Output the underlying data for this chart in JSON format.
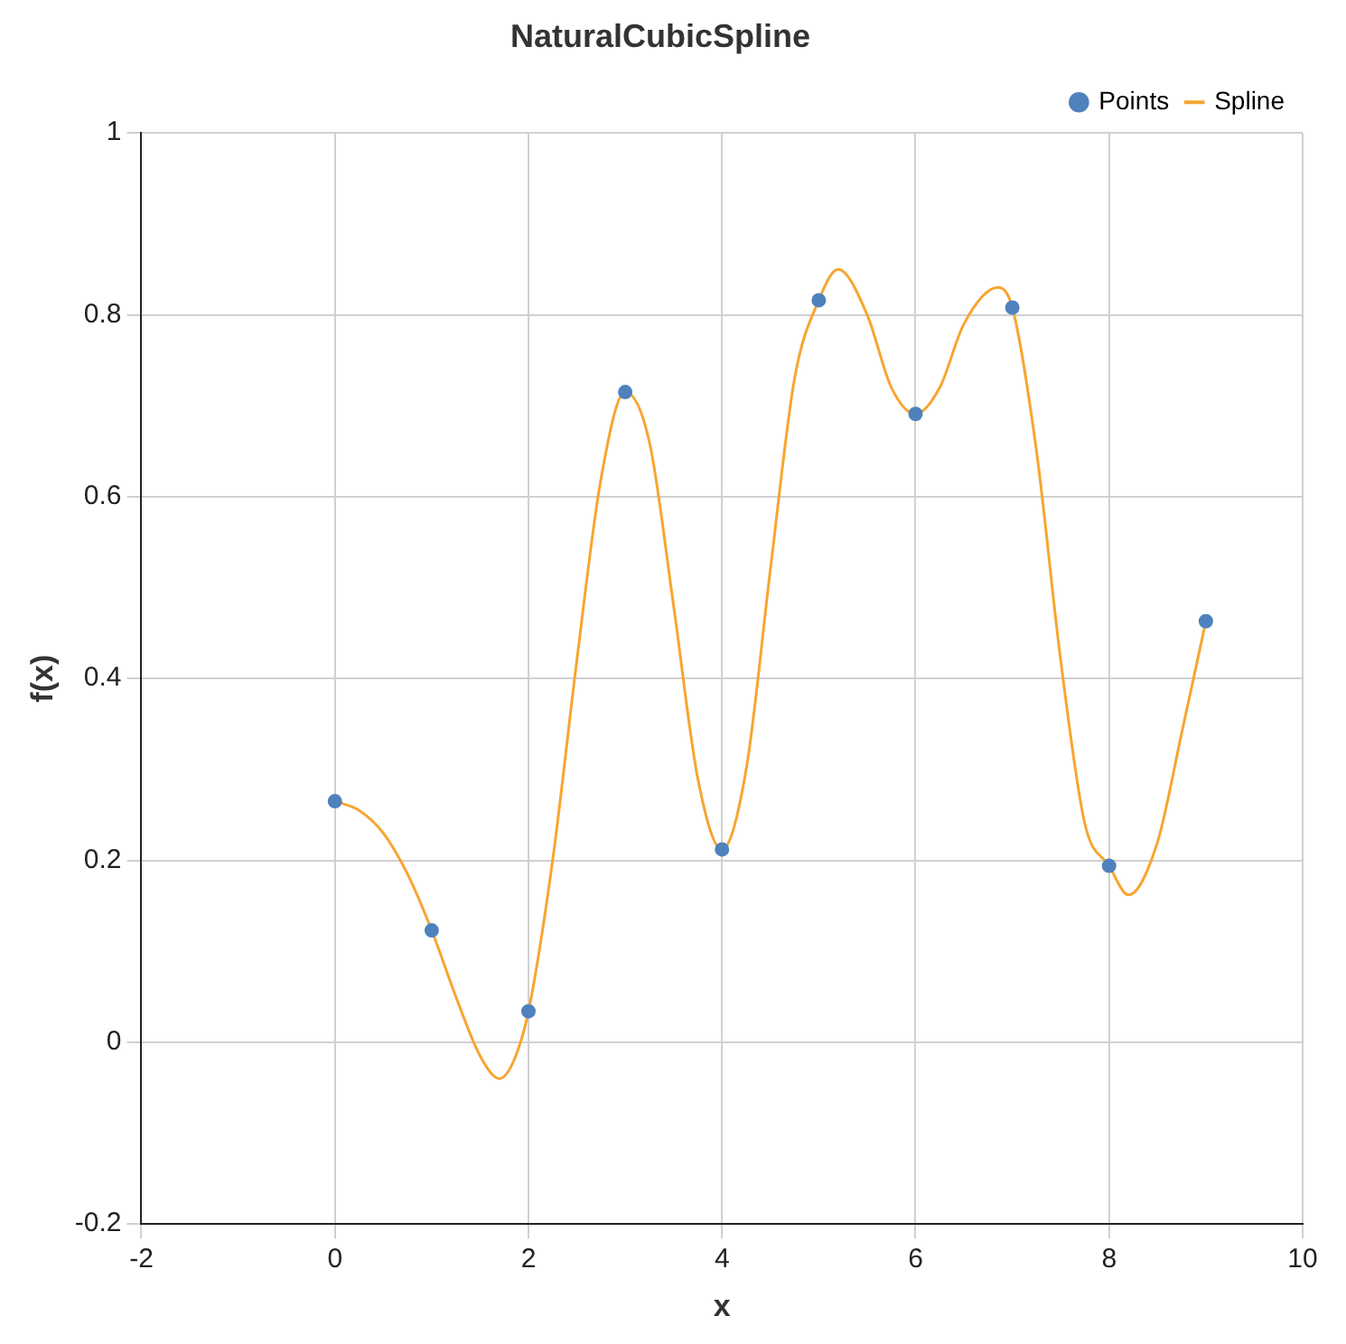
{
  "chart_data": {
    "type": "scatter",
    "title": "NaturalCubicSpline",
    "xlabel": "x",
    "ylabel": "f(x)",
    "xlim": [
      -2,
      10
    ],
    "xticks": [
      -2,
      0,
      2,
      4,
      6,
      8,
      10
    ],
    "ylim": [
      -0.2,
      1
    ],
    "yticks": [
      -0.2,
      0,
      0.2,
      0.4,
      0.6,
      0.8,
      1
    ],
    "grid": true,
    "legend": "top right",
    "series": [
      {
        "name": "Points",
        "marker": "circle",
        "color": "#4f81bd",
        "x": [
          0,
          1,
          2,
          3,
          4,
          5,
          6,
          7,
          8,
          9
        ],
        "values": [
          0.265,
          0.123,
          0.034,
          0.715,
          0.212,
          0.816,
          0.691,
          0.808,
          0.194,
          0.463
        ]
      },
      {
        "name": "Spline",
        "type": "line",
        "marker": "none",
        "color": "#f7a530",
        "x": [
          0,
          0.25,
          0.5,
          0.75,
          1,
          1.25,
          1.5,
          1.7,
          1.85,
          2,
          2.25,
          2.5,
          2.75,
          3,
          3.25,
          3.5,
          3.75,
          4,
          4.25,
          4.5,
          4.75,
          5,
          5.2,
          5.5,
          5.75,
          6,
          6.25,
          6.5,
          6.85,
          7,
          7.25,
          7.5,
          7.75,
          8,
          8.2,
          8.5,
          8.75,
          9
        ],
        "values": [
          0.265,
          0.255,
          0.23,
          0.185,
          0.123,
          0.05,
          -0.015,
          -0.04,
          -0.02,
          0.034,
          0.2,
          0.42,
          0.62,
          0.715,
          0.66,
          0.48,
          0.29,
          0.212,
          0.3,
          0.52,
          0.73,
          0.816,
          0.85,
          0.8,
          0.72,
          0.691,
          0.72,
          0.79,
          0.83,
          0.808,
          0.65,
          0.42,
          0.24,
          0.194,
          0.162,
          0.22,
          0.34,
          0.463
        ]
      }
    ]
  }
}
